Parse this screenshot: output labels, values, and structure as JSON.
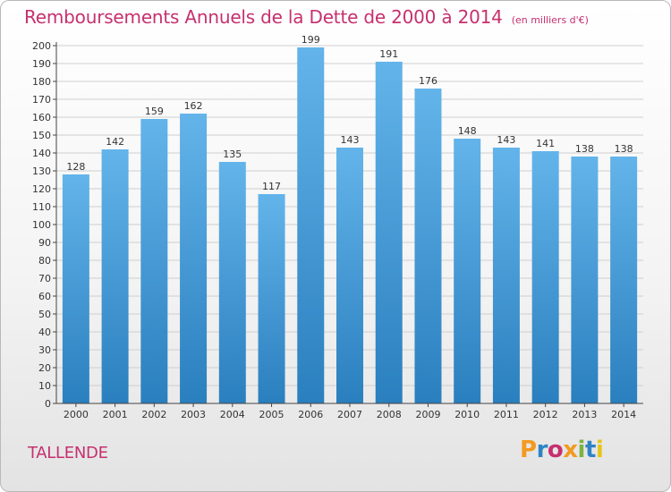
{
  "header": {
    "title": "Remboursements Annuels de la Dette de 2000 à 2014",
    "unit_note": "(en milliers d'€)"
  },
  "footer": {
    "town": "TALLENDE",
    "brand": "Proxiti",
    "brand_colors": [
      "#f39a1f",
      "#2f83c5",
      "#c6306f",
      "#f39a1f",
      "#7bb241",
      "#2f83c5",
      "#e6c51a"
    ]
  },
  "chart_data": {
    "type": "bar",
    "categories": [
      "2000",
      "2001",
      "2002",
      "2003",
      "2004",
      "2005",
      "2006",
      "2007",
      "2008",
      "2009",
      "2010",
      "2011",
      "2012",
      "2013",
      "2014"
    ],
    "values": [
      128,
      142,
      159,
      162,
      135,
      117,
      199,
      143,
      191,
      176,
      148,
      143,
      141,
      138,
      138
    ],
    "data_labels": [
      "128",
      "142",
      "159",
      "162",
      "135",
      "117",
      "199",
      "143",
      "191",
      "176",
      "148",
      "143",
      "141",
      "138",
      "138"
    ],
    "y_ticks": [
      "0",
      "10",
      "20",
      "30",
      "40",
      "50",
      "60",
      "70",
      "80",
      "90",
      "100",
      "110",
      "120",
      "130",
      "140",
      "150",
      "160",
      "170",
      "180",
      "190",
      "200"
    ],
    "ylim": [
      0,
      200
    ],
    "grid": true,
    "legend": "none",
    "colors": {
      "bar_top": "#63b4ea",
      "bar_bottom": "#2a7fbe",
      "grid": "#cfcfcf",
      "axis": "#444444",
      "text": "#333333"
    }
  }
}
